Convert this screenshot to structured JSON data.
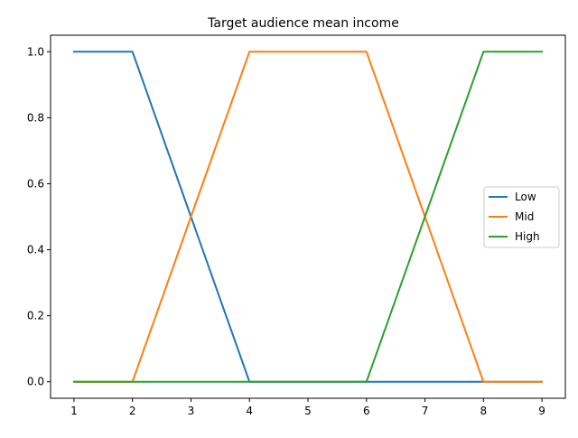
{
  "chart_data": {
    "type": "line",
    "title": "Target audience mean income",
    "xlabel": "",
    "ylabel": "",
    "x": [
      1,
      2,
      3,
      4,
      5,
      6,
      7,
      8,
      9
    ],
    "xticks": [
      1,
      2,
      3,
      4,
      5,
      6,
      7,
      8,
      9
    ],
    "yticks": [
      0.0,
      0.2,
      0.4,
      0.6,
      0.8,
      1.0
    ],
    "ytick_labels": [
      "0.0",
      "0.2",
      "0.4",
      "0.6",
      "0.8",
      "1.0"
    ],
    "xlim": [
      0.6,
      9.4
    ],
    "ylim": [
      -0.05,
      1.05
    ],
    "grid": false,
    "legend_position": "center-right",
    "series": [
      {
        "name": "Low",
        "color": "#1f77b4",
        "values": [
          1,
          1,
          0.5,
          0,
          0,
          0,
          0,
          0,
          0
        ]
      },
      {
        "name": "Mid",
        "color": "#ff7f0e",
        "values": [
          0,
          0,
          0.5,
          1,
          1,
          1,
          0.5,
          0,
          0
        ]
      },
      {
        "name": "High",
        "color": "#2ca02c",
        "values": [
          0,
          0,
          0,
          0,
          0,
          0,
          0.5,
          1,
          1
        ]
      }
    ]
  }
}
